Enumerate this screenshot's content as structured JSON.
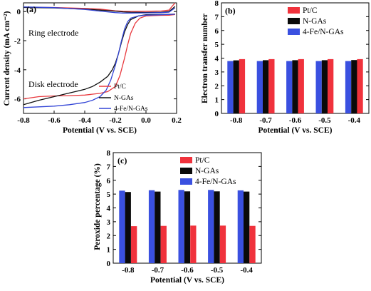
{
  "chart_data": [
    {
      "panel": "(a)",
      "type": "line",
      "xlabel": "Potential (V vs. SCE)",
      "ylabel": "Current density (mA cm⁻²)",
      "xlim": [
        -0.8,
        0.2
      ],
      "ylim": [
        -7,
        0.6
      ],
      "xticks": [
        -0.8,
        -0.6,
        -0.4,
        -0.2,
        0.0,
        0.2
      ],
      "xtick_labels": [
        "-0.8",
        "-0.6",
        "-0.4",
        "-0.2",
        "0.0",
        "0.2"
      ],
      "yticks": [
        0,
        -2,
        -4,
        -6
      ],
      "ytick_labels": [
        "0",
        "-2",
        "-4",
        "-6"
      ],
      "annotations": [
        "Ring electrode",
        "Disk electrode"
      ],
      "legend_position": "bottom-right",
      "series": [
        {
          "name": "Pt/C",
          "color": "#e8383d",
          "disk": {
            "x": [
              -0.8,
              -0.7,
              -0.6,
              -0.5,
              -0.4,
              -0.3,
              -0.25,
              -0.2,
              -0.17,
              -0.14,
              -0.12,
              -0.1,
              -0.07,
              -0.04,
              0.0,
              0.05,
              0.1,
              0.15,
              0.19
            ],
            "y": [
              -6.0,
              -5.85,
              -5.8,
              -5.78,
              -5.74,
              -5.62,
              -5.5,
              -5.15,
              -4.4,
              -3.2,
              -2.3,
              -1.5,
              -0.8,
              -0.45,
              -0.3,
              -0.28,
              -0.26,
              -0.25,
              -0.2
            ]
          },
          "ring": {
            "x": [
              -0.8,
              -0.6,
              -0.4,
              -0.3,
              -0.2,
              -0.15,
              -0.1,
              0.0,
              0.1,
              0.15,
              0.19
            ],
            "y": [
              0.3,
              0.28,
              0.22,
              0.17,
              0.05,
              0.02,
              0.01,
              0.02,
              0.04,
              0.1,
              0.6
            ]
          }
        },
        {
          "name": "N-GAs",
          "color": "#111111",
          "disk": {
            "x": [
              -0.8,
              -0.7,
              -0.6,
              -0.5,
              -0.4,
              -0.35,
              -0.3,
              -0.25,
              -0.22,
              -0.2,
              -0.18,
              -0.16,
              -0.14,
              -0.12,
              -0.1,
              -0.05,
              0.0,
              0.1,
              0.19
            ],
            "y": [
              -6.4,
              -6.1,
              -5.85,
              -5.6,
              -5.35,
              -5.15,
              -4.85,
              -4.45,
              -4.0,
              -3.55,
              -2.9,
              -2.1,
              -1.4,
              -0.9,
              -0.55,
              -0.3,
              -0.22,
              -0.2,
              -0.18
            ]
          },
          "ring": {
            "x": [
              -0.8,
              -0.6,
              -0.4,
              -0.3,
              -0.2,
              -0.15,
              -0.1,
              0.0,
              0.1,
              0.15,
              0.19
            ],
            "y": [
              0.28,
              0.25,
              0.17,
              0.1,
              0.03,
              -0.02,
              -0.04,
              -0.06,
              -0.04,
              0.0,
              0.35
            ]
          }
        },
        {
          "name": "4-Fe/N-GAs",
          "color": "#3345d6",
          "disk": {
            "x": [
              -0.8,
              -0.7,
              -0.6,
              -0.5,
              -0.4,
              -0.35,
              -0.3,
              -0.26,
              -0.23,
              -0.2,
              -0.18,
              -0.16,
              -0.14,
              -0.12,
              -0.1,
              -0.05,
              0.0,
              0.1,
              0.19
            ],
            "y": [
              -6.6,
              -6.55,
              -6.5,
              -6.4,
              -6.25,
              -6.1,
              -5.85,
              -5.4,
              -4.7,
              -3.7,
              -2.9,
              -2.0,
              -1.2,
              -0.7,
              -0.45,
              -0.3,
              -0.25,
              -0.22,
              -0.18
            ]
          },
          "ring": {
            "x": [
              -0.8,
              -0.6,
              -0.4,
              -0.3,
              -0.2,
              -0.15,
              -0.1,
              0.0,
              0.1,
              0.15,
              0.19
            ],
            "y": [
              0.32,
              0.27,
              0.15,
              0.03,
              -0.07,
              -0.1,
              -0.1,
              -0.09,
              -0.07,
              -0.04,
              0.25
            ]
          }
        }
      ]
    },
    {
      "panel": "(b)",
      "type": "bar",
      "xlabel": "Potential (V vs. SCE)",
      "ylabel": "Electron transfer number",
      "categories": [
        "-0.8",
        "-0.7",
        "-0.6",
        "-0.5",
        "-0.4"
      ],
      "ylim": [
        0,
        8
      ],
      "yticks": [
        0,
        1,
        2,
        3,
        4,
        5,
        6,
        7,
        8
      ],
      "ytick_labels": [
        "0",
        "1",
        "2",
        "3",
        "4",
        "5",
        "6",
        "7",
        "8"
      ],
      "legend_position": "top-right",
      "series": [
        {
          "name": "4-Fe/N-GAs",
          "color": "#3a50e0",
          "values": [
            3.79,
            3.79,
            3.79,
            3.79,
            3.79
          ]
        },
        {
          "name": "N-GAs",
          "color": "#0a0a0a",
          "values": [
            3.84,
            3.85,
            3.85,
            3.85,
            3.86
          ]
        },
        {
          "name": "Pt/C",
          "color": "#f0323c",
          "values": [
            3.93,
            3.93,
            3.93,
            3.93,
            3.93
          ]
        }
      ],
      "legend_order": [
        "Pt/C",
        "N-GAs",
        "4-Fe/N-GAs"
      ]
    },
    {
      "panel": "(c)",
      "type": "bar",
      "xlabel": "Potential (V vs. SCE)",
      "ylabel": "Peroxide percentage (%)",
      "categories": [
        "-0.8",
        "-0.7",
        "-0.6",
        "-0.5",
        "-0.4"
      ],
      "ylim": [
        0,
        8
      ],
      "yticks": [
        0,
        1,
        2,
        3,
        4,
        5,
        6,
        7,
        8
      ],
      "ytick_labels": [
        "0",
        "1",
        "2",
        "3",
        "4",
        "5",
        "6",
        "7",
        "8"
      ],
      "legend_position": "top-center",
      "series": [
        {
          "name": "4-Fe/N-GAs",
          "color": "#3a50e0",
          "values": [
            5.25,
            5.28,
            5.3,
            5.3,
            5.27
          ]
        },
        {
          "name": "N-GAs",
          "color": "#0a0a0a",
          "values": [
            5.15,
            5.18,
            5.2,
            5.2,
            5.18
          ]
        },
        {
          "name": "Pt/C",
          "color": "#f0323c",
          "values": [
            2.68,
            2.7,
            2.72,
            2.72,
            2.7
          ]
        }
      ],
      "legend_order": [
        "Pt/C",
        "N-GAs",
        "4-Fe/N-GAs"
      ]
    }
  ]
}
